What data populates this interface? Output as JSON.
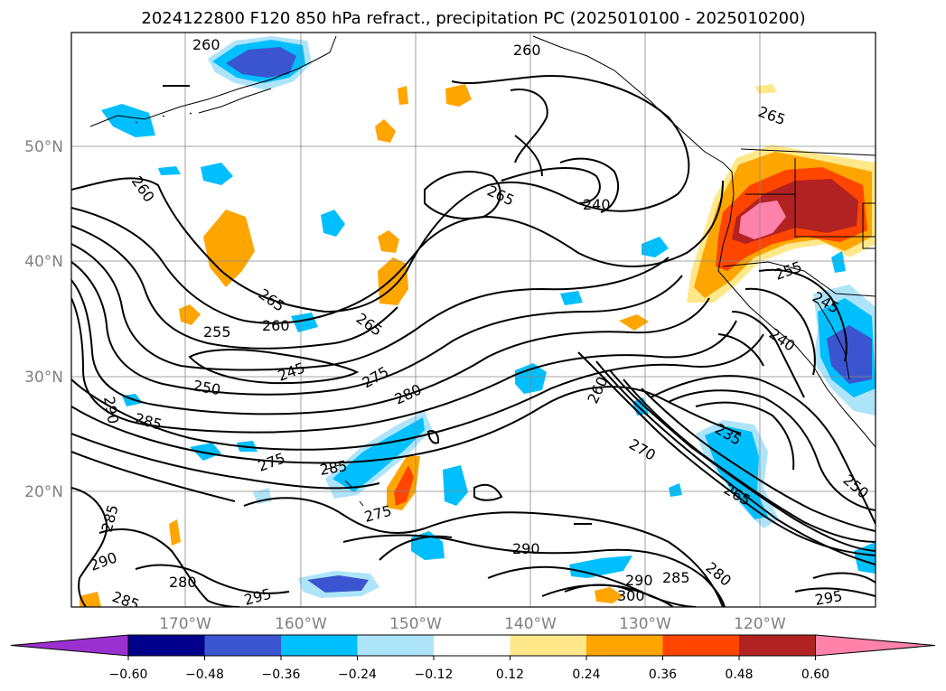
{
  "title": "2024122800 F120 850 hPa refract., precipitation PC (2025010100 - 2025010200)",
  "lat_labels": [
    "50°N",
    "40°N",
    "30°N",
    "20°N"
  ],
  "lon_labels": [
    "170°W",
    "160°W",
    "150°W",
    "140°W",
    "130°W",
    "120°W"
  ],
  "colorbar": {
    "ticks": [
      "−0.60",
      "−0.48",
      "−0.36",
      "−0.24",
      "−0.12",
      "0.12",
      "0.24",
      "0.36",
      "0.48",
      "0.60"
    ],
    "colors": [
      "#9b30d0",
      "#00008b",
      "#3a55cf",
      "#00bfff",
      "#aee4fa",
      "#ffffff",
      "#ffe88a",
      "#ffa500",
      "#ff4500",
      "#b22222",
      "#ff82aa"
    ]
  },
  "contour_labels": [
    "260",
    "260",
    "265",
    "260",
    "265",
    "265",
    "260",
    "255",
    "265",
    "245",
    "250",
    "275",
    "280",
    "260",
    "255",
    "240",
    "245",
    "240",
    "290",
    "285",
    "275",
    "285",
    "275",
    "235",
    "270",
    "265",
    "250",
    "285",
    "290",
    "280",
    "285",
    "290",
    "295",
    "280",
    "285",
    "290",
    "300",
    "295"
  ]
}
